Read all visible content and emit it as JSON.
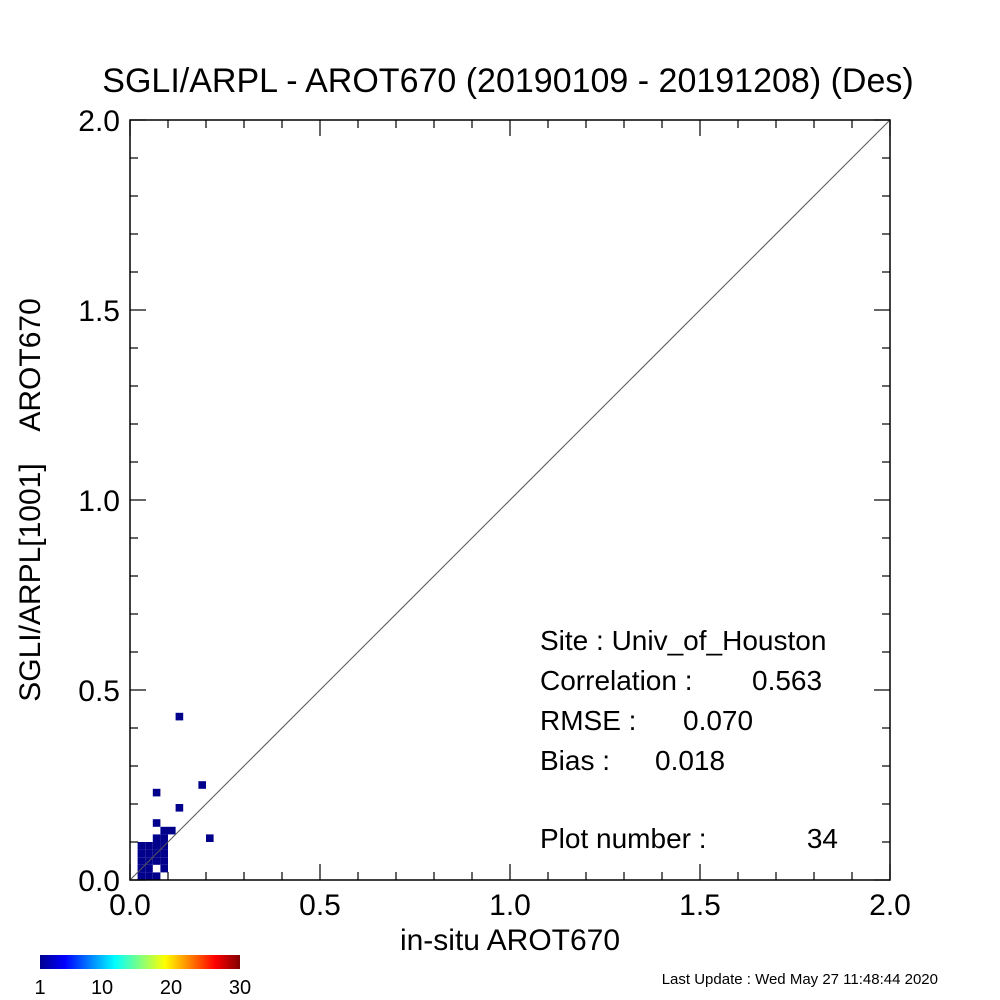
{
  "chart_data": {
    "type": "heatmap",
    "title": "SGLI/ARPL - AROT670 (20190109 - 20191208) (Des)",
    "xlabel": "in-situ AROT670",
    "ylabel": "SGLI/ARPL[1001]    AROT670",
    "xlim": [
      0.0,
      2.0
    ],
    "ylim": [
      0.0,
      2.0
    ],
    "x_ticks": [
      "0.0",
      "0.5",
      "1.0",
      "1.5",
      "2.0"
    ],
    "y_ticks": [
      "0.0",
      "0.5",
      "1.0",
      "1.5",
      "2.0"
    ],
    "bin_size": 0.02,
    "one_to_one_line": true,
    "point_color": "#00008b",
    "bins": [
      {
        "x": 0.02,
        "y": 0.0
      },
      {
        "x": 0.04,
        "y": 0.0
      },
      {
        "x": 0.06,
        "y": 0.0
      },
      {
        "x": 0.02,
        "y": 0.02
      },
      {
        "x": 0.04,
        "y": 0.02
      },
      {
        "x": 0.08,
        "y": 0.02
      },
      {
        "x": 0.02,
        "y": 0.04
      },
      {
        "x": 0.04,
        "y": 0.04
      },
      {
        "x": 0.06,
        "y": 0.04
      },
      {
        "x": 0.08,
        "y": 0.04
      },
      {
        "x": 0.02,
        "y": 0.06
      },
      {
        "x": 0.04,
        "y": 0.06
      },
      {
        "x": 0.06,
        "y": 0.06
      },
      {
        "x": 0.08,
        "y": 0.06
      },
      {
        "x": 0.02,
        "y": 0.08
      },
      {
        "x": 0.04,
        "y": 0.08
      },
      {
        "x": 0.06,
        "y": 0.08
      },
      {
        "x": 0.08,
        "y": 0.08
      },
      {
        "x": 0.06,
        "y": 0.1
      },
      {
        "x": 0.08,
        "y": 0.1
      },
      {
        "x": 0.08,
        "y": 0.12
      },
      {
        "x": 0.1,
        "y": 0.12
      },
      {
        "x": 0.06,
        "y": 0.14
      },
      {
        "x": 0.2,
        "y": 0.1
      },
      {
        "x": 0.12,
        "y": 0.18
      },
      {
        "x": 0.06,
        "y": 0.22
      },
      {
        "x": 0.18,
        "y": 0.24
      },
      {
        "x": 0.12,
        "y": 0.42
      }
    ],
    "annotations": {
      "site": "Site : Univ_of_Houston",
      "correlation_label": "Correlation :",
      "correlation_value": "0.563",
      "rmse_label": "RMSE :",
      "rmse_value": "0.070",
      "bias_label": "Bias :",
      "bias_value": "0.018",
      "plot_number_label": "Plot number :",
      "plot_number_value": "34"
    },
    "colorbar": {
      "ticks": [
        "1",
        "10",
        "20",
        "30"
      ],
      "min": 1,
      "max": 30,
      "colors": [
        "#00008f",
        "#0000ff",
        "#0080ff",
        "#00ffff",
        "#80ff80",
        "#ffff00",
        "#ff8000",
        "#ff0000",
        "#800000"
      ]
    }
  },
  "footer": {
    "last_update": "Last Update : Wed May 27 11:48:44 2020"
  }
}
